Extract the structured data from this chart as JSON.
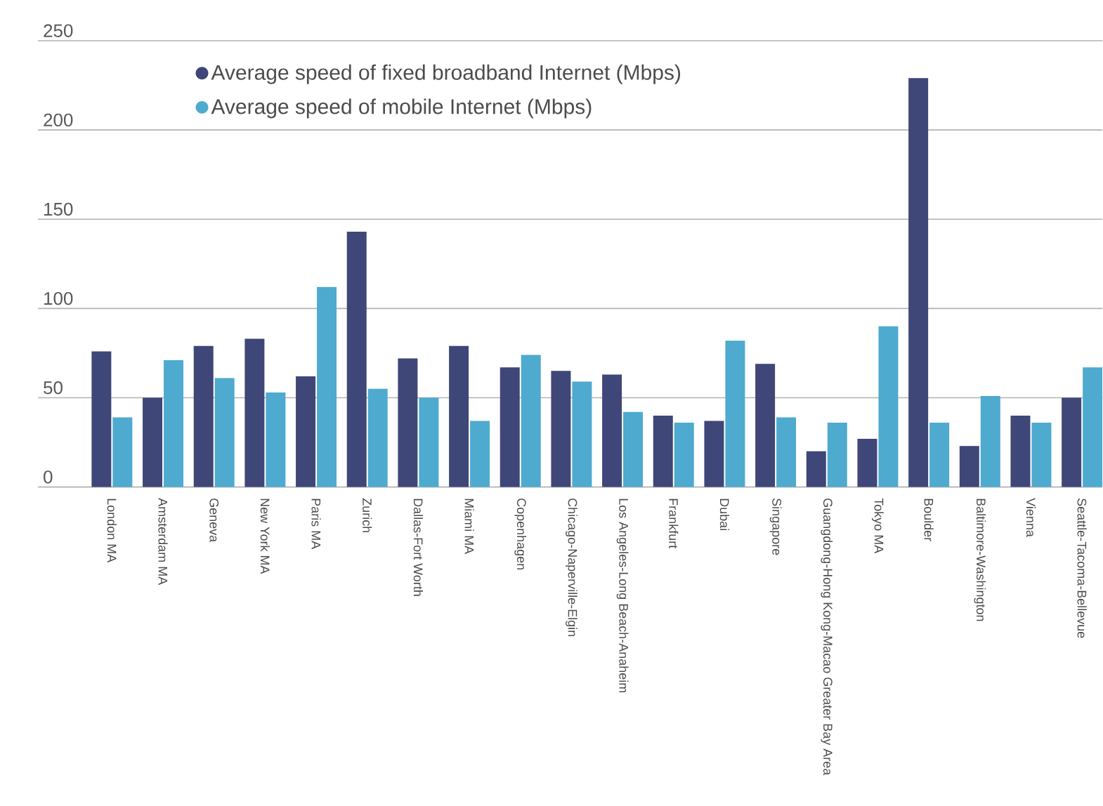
{
  "chart_data": {
    "type": "bar",
    "categories": [
      "London MA",
      "Amsterdam MA",
      "Geneva",
      "New York MA",
      "Paris MA",
      "Zurich",
      "Dallas-Fort Worth",
      "Miami MA",
      "Copenhagen",
      "Chicago-Naperville-Elgin",
      "Los Angeles-Long Beach-Anaheim",
      "Frankfurt",
      "Dubai",
      "Singapore",
      "Guangdong-Hong Kong-Macao Greater Bay Area",
      "Tokyo MA",
      "Boulder",
      "Baltimore-Washington",
      "Vienna",
      "Seattle-Tacoma-Bellevue"
    ],
    "series": [
      {
        "name": "Average speed of fixed broadband Internet (Mbps)",
        "color": "#3f4678",
        "values": [
          76,
          50,
          79,
          83,
          62,
          143,
          72,
          79,
          67,
          65,
          63,
          40,
          37,
          69,
          20,
          27,
          229,
          23,
          40,
          50
        ]
      },
      {
        "name": "Average speed of mobile Internet (Mbps)",
        "color": "#4eaacf",
        "values": [
          39,
          71,
          61,
          53,
          112,
          55,
          50,
          37,
          74,
          59,
          42,
          36,
          82,
          39,
          36,
          90,
          36,
          51,
          36,
          67
        ]
      }
    ],
    "ylim": [
      0,
      250
    ],
    "yticks": [
      0,
      50,
      100,
      150,
      200,
      250
    ],
    "grid": "y",
    "legend": "top left"
  }
}
